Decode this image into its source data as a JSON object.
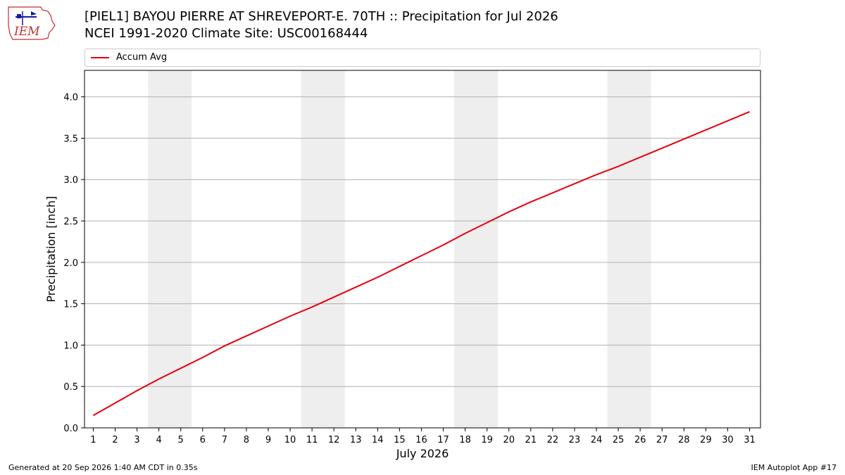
{
  "header": {
    "title_line1": "[PIEL1] BAYOU PIERRE  AT SHREVEPORT-E. 70TH :: Precipitation for Jul 2026",
    "title_line2": "NCEI 1991-2020 Climate Site: USC00168444",
    "logo_text": "IEM",
    "logo_icon": "iem-logo-icon"
  },
  "legend": {
    "items": [
      {
        "label": "Accum Avg",
        "color": "#e8000b"
      }
    ],
    "placement": "top"
  },
  "footer": {
    "generated": "Generated at 20 Sep 2026 1:40 AM CDT in 0.35s",
    "app": "IEM Autoplot App #17"
  },
  "chart_data": {
    "type": "line",
    "title": "[PIEL1] BAYOU PIERRE  AT SHREVEPORT-E. 70TH :: Precipitation for Jul 2026",
    "xlabel": "July 2026",
    "ylabel": "Precipitation [inch]",
    "x": [
      1,
      2,
      3,
      4,
      5,
      6,
      7,
      8,
      9,
      10,
      11,
      12,
      13,
      14,
      15,
      16,
      17,
      18,
      19,
      20,
      21,
      22,
      23,
      24,
      25,
      26,
      27,
      28,
      29,
      30,
      31
    ],
    "series": [
      {
        "name": "Accum Avg",
        "color": "#e8000b",
        "values": [
          0.15,
          0.3,
          0.45,
          0.59,
          0.72,
          0.85,
          0.99,
          1.11,
          1.23,
          1.35,
          1.46,
          1.58,
          1.7,
          1.82,
          1.95,
          2.08,
          2.21,
          2.35,
          2.48,
          2.61,
          2.73,
          2.84,
          2.95,
          3.06,
          3.16,
          3.27,
          3.38,
          3.49,
          3.6,
          3.71,
          3.82
        ]
      }
    ],
    "xlim": [
      0.6,
      31.5
    ],
    "ylim": [
      0,
      4.32
    ],
    "yticks": [
      0.0,
      0.5,
      1.0,
      1.5,
      2.0,
      2.5,
      3.0,
      3.5,
      4.0
    ],
    "ytick_labels": [
      "0.0",
      "0.5",
      "1.0",
      "1.5",
      "2.0",
      "2.5",
      "3.0",
      "3.5",
      "4.0"
    ],
    "xticks": [
      1,
      2,
      3,
      4,
      5,
      6,
      7,
      8,
      9,
      10,
      11,
      12,
      13,
      14,
      15,
      16,
      17,
      18,
      19,
      20,
      21,
      22,
      23,
      24,
      25,
      26,
      27,
      28,
      29,
      30,
      31
    ],
    "xtick_labels": [
      "1",
      "2",
      "3",
      "4",
      "5",
      "6",
      "7",
      "8",
      "9",
      "10",
      "11",
      "12",
      "13",
      "14",
      "15",
      "16",
      "17",
      "18",
      "19",
      "20",
      "21",
      "22",
      "23",
      "24",
      "25",
      "26",
      "27",
      "28",
      "29",
      "30",
      "31"
    ],
    "weekend_bands": [
      [
        3.5,
        5.5
      ],
      [
        10.5,
        12.5
      ],
      [
        17.5,
        19.5
      ],
      [
        24.5,
        26.5
      ]
    ],
    "weekend_color": "#eeeeee",
    "grid": "y"
  }
}
